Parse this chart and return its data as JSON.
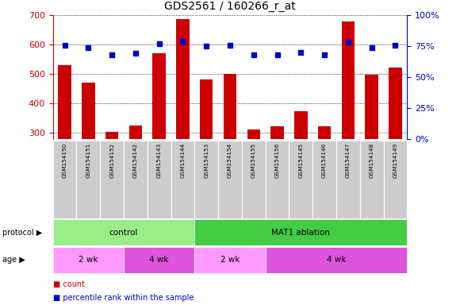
{
  "title": "GDS2561 / 160266_r_at",
  "samples": [
    "GSM154150",
    "GSM154151",
    "GSM154152",
    "GSM154142",
    "GSM154143",
    "GSM154144",
    "GSM154153",
    "GSM154154",
    "GSM154155",
    "GSM154156",
    "GSM154145",
    "GSM154146",
    "GSM154147",
    "GSM154148",
    "GSM154149"
  ],
  "counts": [
    530,
    470,
    303,
    325,
    572,
    688,
    482,
    500,
    313,
    323,
    373,
    323,
    678,
    497,
    522
  ],
  "percentile_ranks": [
    76,
    74,
    68,
    69,
    77,
    79,
    75,
    76,
    68,
    68,
    70,
    68,
    78,
    74,
    76
  ],
  "ylim_left": [
    280,
    700
  ],
  "ylim_right": [
    0,
    100
  ],
  "yticks_left": [
    300,
    400,
    500,
    600,
    700
  ],
  "yticks_right": [
    0,
    25,
    50,
    75,
    100
  ],
  "bar_color": "#cc0000",
  "dot_color": "#0000cc",
  "grid_color": "#000000",
  "bg_color": "#ffffff",
  "age_groups": [
    {
      "label": "2 wk",
      "start": 0,
      "end": 2,
      "color": "#ff99ff"
    },
    {
      "label": "4 wk",
      "start": 3,
      "end": 5,
      "color": "#dd55dd"
    },
    {
      "label": "2 wk",
      "start": 6,
      "end": 8,
      "color": "#ff99ff"
    },
    {
      "label": "4 wk",
      "start": 9,
      "end": 14,
      "color": "#dd55dd"
    }
  ],
  "protocol_groups": [
    {
      "label": "control",
      "start": 0,
      "end": 5,
      "color": "#99ee88"
    },
    {
      "label": "MAT1 ablation",
      "start": 6,
      "end": 14,
      "color": "#44cc44"
    }
  ],
  "legend_count_label": "count",
  "legend_pct_label": "percentile rank within the sample",
  "bar_color_legend": "#cc0000",
  "dot_color_legend": "#0000cc",
  "tick_label_area_color": "#cccccc",
  "title_fontsize": 10,
  "tick_fontsize": 8,
  "bar_width": 0.55
}
